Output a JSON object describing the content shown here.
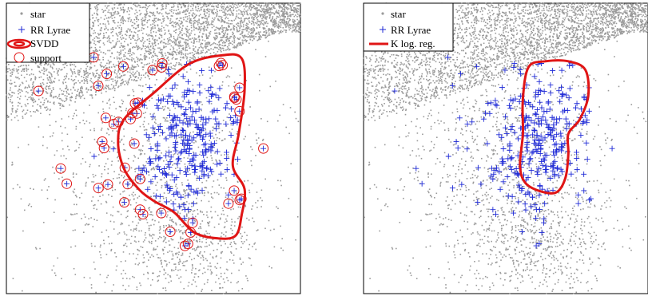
{
  "colors": {
    "star": "#9a9a9a",
    "rr_lyrae": "#1f2ad6",
    "boundary": "#e01515",
    "frame": "#000000",
    "background": "#ffffff"
  },
  "chart_data": [
    {
      "type": "scatter",
      "title": "",
      "xlabel": "",
      "ylabel": "",
      "xlim": [
        0,
        100
      ],
      "ylim": [
        0,
        100
      ],
      "grid": false,
      "legend_position": "top-left",
      "legend": [
        "star",
        "RR Lyrae",
        "SVDD",
        "support"
      ],
      "series": [
        {
          "name": "star",
          "marker": "dot",
          "values": [],
          "note_density": "dense band along top-left to top-right, sparse cloud below"
        },
        {
          "name": "RR Lyrae",
          "marker": "plus"
        },
        {
          "name": "SVDD",
          "marker": "closed-curve"
        },
        {
          "name": "support",
          "marker": "circle"
        }
      ],
      "svdd_boundary": [
        [
          40,
          40
        ],
        [
          50,
          31
        ],
        [
          62,
          21
        ],
        [
          73,
          18
        ],
        [
          80,
          19
        ],
        [
          81,
          30
        ],
        [
          79,
          45
        ],
        [
          77,
          56
        ],
        [
          81,
          64
        ],
        [
          80,
          73
        ],
        [
          78,
          80
        ],
        [
          72,
          81
        ],
        [
          64,
          79
        ],
        [
          57,
          72
        ],
        [
          50,
          68
        ],
        [
          45,
          64
        ],
        [
          40,
          57
        ],
        [
          38,
          48
        ]
      ]
    },
    {
      "type": "scatter",
      "title": "",
      "xlabel": "",
      "ylabel": "",
      "xlim": [
        0,
        100
      ],
      "ylim": [
        0,
        100
      ],
      "grid": false,
      "legend_position": "top-left",
      "legend": [
        "star",
        "RR Lyrae",
        "K log. reg."
      ],
      "series": [
        {
          "name": "star",
          "marker": "dot"
        },
        {
          "name": "RR Lyrae",
          "marker": "plus"
        },
        {
          "name": "K log. reg.",
          "marker": "closed-curve"
        }
      ],
      "klr_boundary": [
        [
          58,
          22
        ],
        [
          64,
          20
        ],
        [
          72,
          20
        ],
        [
          78,
          23
        ],
        [
          79,
          32
        ],
        [
          76,
          40
        ],
        [
          72,
          45
        ],
        [
          72,
          52
        ],
        [
          71,
          60
        ],
        [
          68,
          65
        ],
        [
          63,
          65
        ],
        [
          57,
          62
        ],
        [
          55,
          56
        ],
        [
          56,
          45
        ],
        [
          56,
          33
        ]
      ]
    }
  ]
}
